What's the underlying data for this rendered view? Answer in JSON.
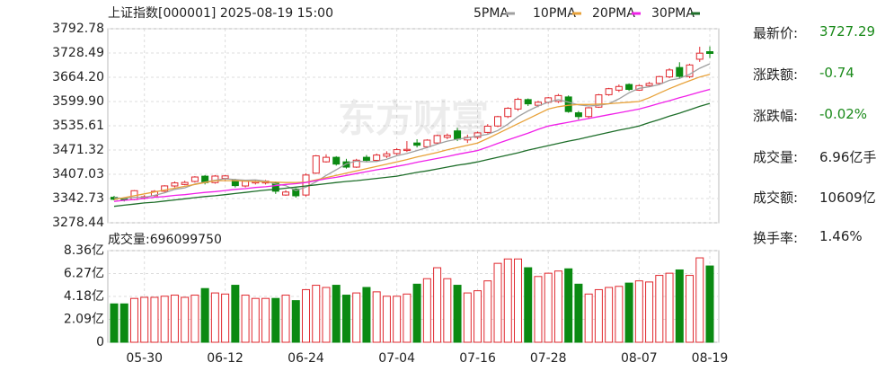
{
  "chart_data": [
    {
      "type": "candlestick",
      "title": "上证指数[000001] 2025-08-19 15:00",
      "watermark": "东方财富",
      "categories": [
        null,
        null,
        null,
        "05-30",
        null,
        null,
        null,
        null,
        null,
        null,
        null,
        "06-12",
        null,
        null,
        null,
        null,
        null,
        null,
        null,
        "06-24",
        null,
        null,
        null,
        null,
        null,
        null,
        null,
        null,
        "07-04",
        null,
        null,
        null,
        null,
        null,
        null,
        null,
        "07-16",
        null,
        null,
        null,
        null,
        null,
        null,
        "07-28",
        null,
        null,
        null,
        null,
        null,
        null,
        null,
        null,
        "08-07",
        null,
        null,
        null,
        null,
        null,
        null,
        "08-19"
      ],
      "open": [
        3346,
        3342,
        3340,
        3345,
        3350,
        3362,
        3376,
        3380,
        3388,
        3402,
        3385,
        3396,
        3392,
        3376,
        3384,
        3384,
        3385,
        3352,
        3368,
        3352,
        3410,
        3440,
        3452,
        3440,
        3426,
        3452,
        3444,
        3455,
        3462,
        3470,
        3490,
        3480,
        3490,
        3505,
        3522,
        3498,
        3505,
        3518,
        3535,
        3560,
        3580,
        3605,
        3590,
        3598,
        3600,
        3612,
        3570,
        3560,
        3585,
        3618,
        3630,
        3645,
        3630,
        3642,
        3648,
        3665,
        3690,
        3666,
        3712,
        3732
      ],
      "high": [
        3350,
        3345,
        3365,
        3352,
        3365,
        3378,
        3388,
        3390,
        3402,
        3405,
        3405,
        3405,
        3395,
        3390,
        3392,
        3392,
        3388,
        3365,
        3370,
        3410,
        3458,
        3460,
        3455,
        3448,
        3448,
        3458,
        3462,
        3468,
        3476,
        3495,
        3500,
        3500,
        3512,
        3515,
        3530,
        3512,
        3520,
        3540,
        3562,
        3585,
        3610,
        3608,
        3602,
        3612,
        3620,
        3616,
        3575,
        3585,
        3620,
        3636,
        3645,
        3648,
        3645,
        3652,
        3668,
        3688,
        3704,
        3700,
        3745,
        3746
      ],
      "low": [
        3338,
        3335,
        3338,
        3340,
        3348,
        3360,
        3372,
        3378,
        3385,
        3380,
        3382,
        3390,
        3372,
        3372,
        3380,
        3380,
        3355,
        3350,
        3345,
        3348,
        3408,
        3438,
        3430,
        3422,
        3424,
        3440,
        3440,
        3450,
        3458,
        3466,
        3478,
        3476,
        3486,
        3500,
        3495,
        3490,
        3500,
        3515,
        3532,
        3556,
        3575,
        3588,
        3585,
        3594,
        3596,
        3570,
        3552,
        3556,
        3583,
        3615,
        3625,
        3628,
        3628,
        3638,
        3645,
        3662,
        3660,
        3662,
        3705,
        3715
      ],
      "close": [
        3340.7,
        3339.9,
        3363.5,
        3347.5,
        3361.9,
        3376.2,
        3384.1,
        3385.4,
        3399.8,
        3384.8,
        3402.3,
        3402.7,
        3377,
        3388.7,
        3387.4,
        3388.8,
        3362.1,
        3359.9,
        3350,
        3405,
        3455.9,
        3452,
        3434,
        3426,
        3444.4,
        3444,
        3458,
        3461.2,
        3472.3,
        3473.1,
        3484,
        3497.5,
        3509.7,
        3510.2,
        3500,
        3505,
        3516.8,
        3534.5,
        3559.8,
        3581.9,
        3605.7,
        3593.7,
        3597.9,
        3609.7,
        3615.7,
        3573.2,
        3559.9,
        3583.3,
        3617.6,
        3633.9,
        3639.7,
        3632,
        3642,
        3647.6,
        3665.9,
        3683.5,
        3666.4,
        3696.8,
        3728,
        3727.29
      ],
      "up_color": "#e0282e",
      "down_color": "#0b8a12",
      "series": [
        {
          "name": "5PMA",
          "color": "#a0a0a0",
          "values": [
            3345,
            3343,
            3346,
            3346,
            3351,
            3358,
            3367,
            3371,
            3381,
            3386,
            3391,
            3395,
            3393,
            3391,
            3392,
            3389,
            3381,
            3377,
            3364,
            3373,
            3387,
            3404,
            3419,
            3435,
            3442,
            3440,
            3441,
            3447,
            3456,
            3462,
            3470,
            3478,
            3487,
            3495,
            3500,
            3504,
            3508,
            3513,
            3523,
            3540,
            3560,
            3575,
            3588,
            3598,
            3605,
            3598,
            3591,
            3588,
            3590,
            3594,
            3607,
            3623,
            3635,
            3639,
            3645,
            3656,
            3661,
            3672,
            3688,
            3700
          ]
        },
        {
          "name": "10PMA",
          "color": "#e8a23a",
          "values": [
            3340,
            3345,
            3350,
            3355,
            3360,
            3365,
            3370,
            3375,
            3380,
            3385,
            3390,
            3390,
            3390,
            3389,
            3388,
            3387,
            3386,
            3385,
            3385,
            3386,
            3392,
            3398,
            3404,
            3410,
            3416,
            3422,
            3428,
            3434,
            3440,
            3446,
            3453,
            3459,
            3465,
            3472,
            3478,
            3484,
            3490,
            3502,
            3515,
            3528,
            3541,
            3554,
            3567,
            3580,
            3586,
            3590,
            3592,
            3592,
            3593,
            3594,
            3596,
            3598,
            3600,
            3610,
            3622,
            3634,
            3645,
            3655,
            3665,
            3672
          ]
        },
        {
          "name": "20PMA",
          "color": "#f020e8",
          "values": [
            3335,
            3338,
            3340,
            3343,
            3346,
            3348,
            3351,
            3353,
            3356,
            3359,
            3361,
            3364,
            3367,
            3369,
            3372,
            3374,
            3377,
            3380,
            3382,
            3385,
            3390,
            3395,
            3399,
            3404,
            3409,
            3414,
            3419,
            3423,
            3428,
            3433,
            3439,
            3444,
            3449,
            3454,
            3460,
            3465,
            3470,
            3479,
            3489,
            3498,
            3507,
            3516,
            3526,
            3535,
            3540,
            3545,
            3550,
            3555,
            3560,
            3565,
            3570,
            3575,
            3580,
            3587,
            3595,
            3602,
            3610,
            3617,
            3625,
            3632
          ]
        },
        {
          "name": "30PMA",
          "color": "#1e6e2a",
          "values": [
            3322,
            3325,
            3328,
            3331,
            3333,
            3336,
            3339,
            3342,
            3345,
            3348,
            3350,
            3353,
            3356,
            3359,
            3362,
            3365,
            3367,
            3370,
            3373,
            3376,
            3379,
            3382,
            3385,
            3388,
            3390,
            3393,
            3396,
            3399,
            3402,
            3407,
            3412,
            3416,
            3421,
            3426,
            3431,
            3435,
            3440,
            3446,
            3452,
            3458,
            3464,
            3471,
            3477,
            3483,
            3489,
            3495,
            3500,
            3506,
            3512,
            3518,
            3524,
            3529,
            3535,
            3544,
            3552,
            3561,
            3569,
            3578,
            3587,
            3595
          ]
        }
      ],
      "ylim": [
        3278.44,
        3792.78
      ],
      "yticks": [
        {
          "value": 3278.44,
          "label": "3278.44"
        },
        3342.73,
        3407.03,
        3471.32,
        3535.61,
        {
          "value": 3599.9,
          "label": "3599.90"
        },
        {
          "value": 3664.2,
          "label": "3664.20"
        },
        3728.49,
        3792.78
      ],
      "grid": true
    },
    {
      "type": "bar",
      "title": "成交量:696099750",
      "values": [
        3.5,
        3.5,
        4.0,
        4.1,
        4.1,
        4.2,
        4.3,
        4.1,
        4.3,
        4.9,
        4.5,
        4.4,
        5.2,
        4.3,
        4.0,
        4.0,
        4.0,
        4.3,
        3.8,
        4.8,
        5.2,
        5.0,
        5.2,
        4.3,
        4.5,
        5.0,
        4.6,
        4.2,
        4.2,
        4.4,
        5.3,
        5.8,
        6.8,
        5.8,
        5.2,
        4.5,
        4.7,
        5.6,
        7.2,
        7.6,
        7.6,
        6.8,
        6.0,
        6.3,
        6.5,
        6.7,
        5.3,
        4.4,
        4.8,
        5.0,
        5.1,
        5.4,
        5.6,
        5.5,
        6.1,
        6.3,
        6.6,
        6.1,
        7.7,
        6.96
      ],
      "ylim": [
        0,
        8.36
      ],
      "yticks": [
        0,
        {
          "value": 2.09,
          "label": "2.09亿"
        },
        {
          "value": 4.18,
          "label": "4.18亿"
        },
        {
          "value": 6.27,
          "label": "6.27亿"
        },
        {
          "value": 8.36,
          "label": "8.36亿"
        }
      ],
      "grid": true
    }
  ],
  "quote": [
    {
      "label": "最新价:",
      "value": "3727.29"
    },
    {
      "label": "涨跌额:",
      "value": "-0.74"
    },
    {
      "label": "涨跌幅:",
      "value": "-0.02%"
    },
    {
      "label": "成交量:",
      "value": "6.96亿手"
    },
    {
      "label": "成交额:",
      "value": "10609亿"
    },
    {
      "label": "换手率:",
      "value": "1.46%"
    }
  ]
}
